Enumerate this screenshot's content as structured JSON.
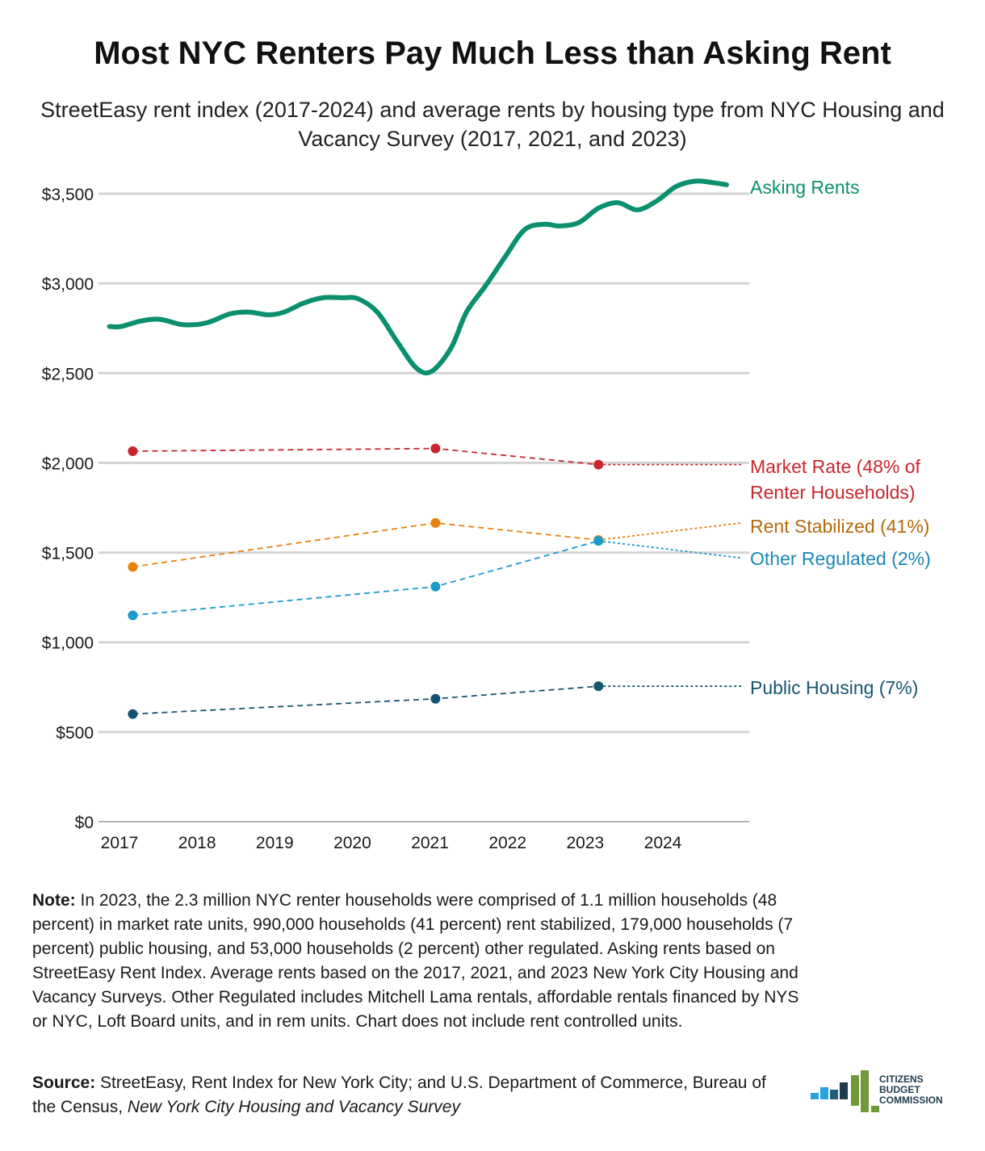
{
  "title": "Most NYC Renters Pay Much Less than Asking Rent",
  "subtitle": "StreetEasy rent index (2017-2024) and average rents by housing type from NYC Housing and Vacancy Survey (2017, 2021, and 2023)",
  "chart_data": {
    "type": "line",
    "title": "Most NYC Renters Pay Much Less than Asking Rent",
    "xlabel": "",
    "ylabel": "",
    "xlim": [
      2017,
      2025.4
    ],
    "ylim": [
      0,
      3700
    ],
    "x_ticks": [
      2017,
      2018,
      2019,
      2020,
      2021,
      2022,
      2023,
      2024
    ],
    "x_tick_labels": [
      "2017",
      "2018",
      "2019",
      "2020",
      "2021",
      "2022",
      "2023",
      "2024"
    ],
    "y_ticks": [
      0,
      500,
      1000,
      1500,
      2000,
      2500,
      3000,
      3500
    ],
    "y_tick_labels": [
      "$0",
      "$500",
      "$1,000",
      "$1,500",
      "$2,000",
      "$2,500",
      "$3,000",
      "$3,500"
    ],
    "grid": true,
    "legend": "direct labels at right",
    "series": [
      {
        "name": "Asking Rents",
        "color": "#0a8f6f",
        "style": "solid-thick",
        "x": [
          2016.85,
          2017.0,
          2017.25,
          2017.5,
          2017.8,
          2018.1,
          2018.4,
          2018.65,
          2018.9,
          2019.1,
          2019.35,
          2019.6,
          2019.85,
          2020.05,
          2020.3,
          2020.55,
          2020.8,
          2021.0,
          2021.25,
          2021.45,
          2021.7,
          2021.95,
          2022.2,
          2022.45,
          2022.65,
          2022.9,
          2023.15,
          2023.4,
          2023.65,
          2023.9,
          2024.15,
          2024.4,
          2024.65,
          2024.8
        ],
        "y": [
          2760,
          2760,
          2790,
          2800,
          2770,
          2780,
          2830,
          2840,
          2825,
          2840,
          2890,
          2920,
          2920,
          2915,
          2840,
          2680,
          2530,
          2510,
          2640,
          2840,
          2990,
          3150,
          3300,
          3330,
          3320,
          3340,
          3420,
          3450,
          3410,
          3460,
          3540,
          3570,
          3560,
          3550
        ]
      },
      {
        "name": "Market Rate (48% of Renter Households)",
        "color": "#c8262e",
        "style": "dashed",
        "x": [
          2017,
          2021,
          2023
        ],
        "y": [
          2065,
          2080,
          1990
        ],
        "extension": {
          "x_end": 2025,
          "y_end": 1990
        }
      },
      {
        "name": "Rent Stabilized (41%)",
        "color": "#e5820a",
        "style": "dashed",
        "x": [
          2017,
          2021,
          2023
        ],
        "y": [
          1420,
          1665,
          1570
        ],
        "extension": {
          "x_end": 2025,
          "y_end": 1665
        }
      },
      {
        "name": "Other Regulated (2%)",
        "color": "#1a9ac9",
        "style": "dashed",
        "x": [
          2017,
          2021,
          2023
        ],
        "y": [
          1150,
          1310,
          1565
        ],
        "extension": {
          "x_end": 2025,
          "y_end": 1470
        }
      },
      {
        "name": "Public Housing (7%)",
        "color": "#16556f",
        "style": "dashed",
        "x": [
          2017,
          2021,
          2023
        ],
        "y": [
          600,
          685,
          755
        ],
        "extension": {
          "x_end": 2025,
          "y_end": 755
        }
      }
    ],
    "series_labels": [
      {
        "lines": [
          "Asking Rents"
        ],
        "color": "#0a8f6f"
      },
      {
        "lines": [
          "Market Rate (48% of",
          "Renter Households)"
        ],
        "color": "#c8262e"
      },
      {
        "lines": [
          "Rent Stabilized (41%)"
        ],
        "color": "#b5680d"
      },
      {
        "lines": [
          "Other Regulated (2%)"
        ],
        "color": "#1a86b5"
      },
      {
        "lines": [
          "Public Housing (7%)"
        ],
        "color": "#16556f"
      }
    ]
  },
  "note": {
    "label": "Note:",
    "text": " In 2023, the 2.3 million NYC renter households were comprised of 1.1 million households (48 percent) in market rate units, 990,000 households (41 percent) rent stabilized, 179,000 households (7 percent) public housing, and 53,000 households (2 percent) other regulated. Asking rents based on StreetEasy Rent Index. Average rents based on the 2017, 2021, and 2023 New York City Housing and Vacancy Surveys. Other Regulated includes Mitchell Lama rentals, affordable rentals financed by NYS or NYC, Loft Board units, and in rem units. Chart does not include rent controlled units."
  },
  "source": {
    "label": "Source:",
    "text": " StreetEasy, Rent Index for New York City; and U.S. Department of Commerce, Bureau of the Census, ",
    "italic": "New York City Housing and Vacancy Survey"
  },
  "logo": {
    "lines": [
      "CITIZENS",
      "BUDGET",
      "COMMISSION"
    ],
    "icon": "bar-chart-logo-icon"
  }
}
